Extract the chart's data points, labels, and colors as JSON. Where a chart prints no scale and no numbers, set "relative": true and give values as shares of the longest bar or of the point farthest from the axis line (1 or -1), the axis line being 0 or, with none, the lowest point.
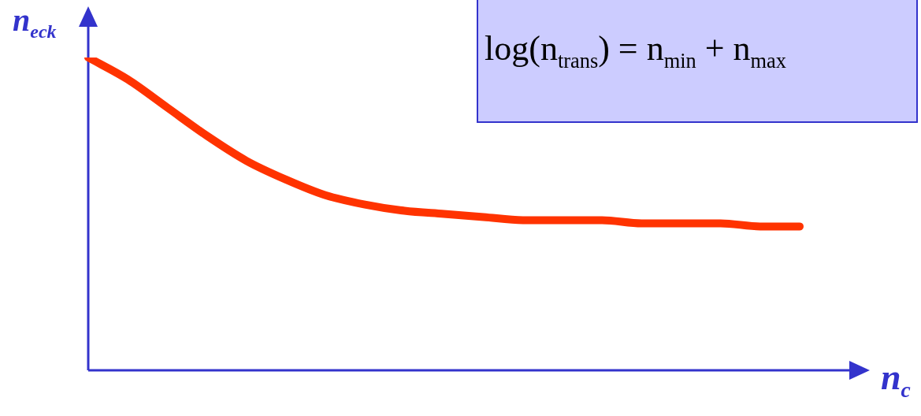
{
  "chart_data": {
    "type": "line",
    "relative": true,
    "marker": "none",
    "xlabel": "n$_{c}$",
    "ylabel": "n$_{eck}$",
    "annotations": [
      "log(n$_{trans}$) = n$_{min}$ + n$_{max}$"
    ],
    "categories": [
      null,
      null,
      null,
      null,
      null,
      null,
      null,
      null,
      null,
      null,
      null,
      null,
      null,
      null,
      null,
      null,
      null,
      null,
      null
    ],
    "color": "#ff3300",
    "values": [
      1.0,
      0.93,
      0.84,
      0.75,
      0.67,
      0.61,
      0.56,
      0.53,
      0.51,
      0.5,
      0.49,
      0.48,
      0.48,
      0.48,
      0.47,
      0.47,
      0.47,
      0.46,
      0.46
    ]
  }
}
